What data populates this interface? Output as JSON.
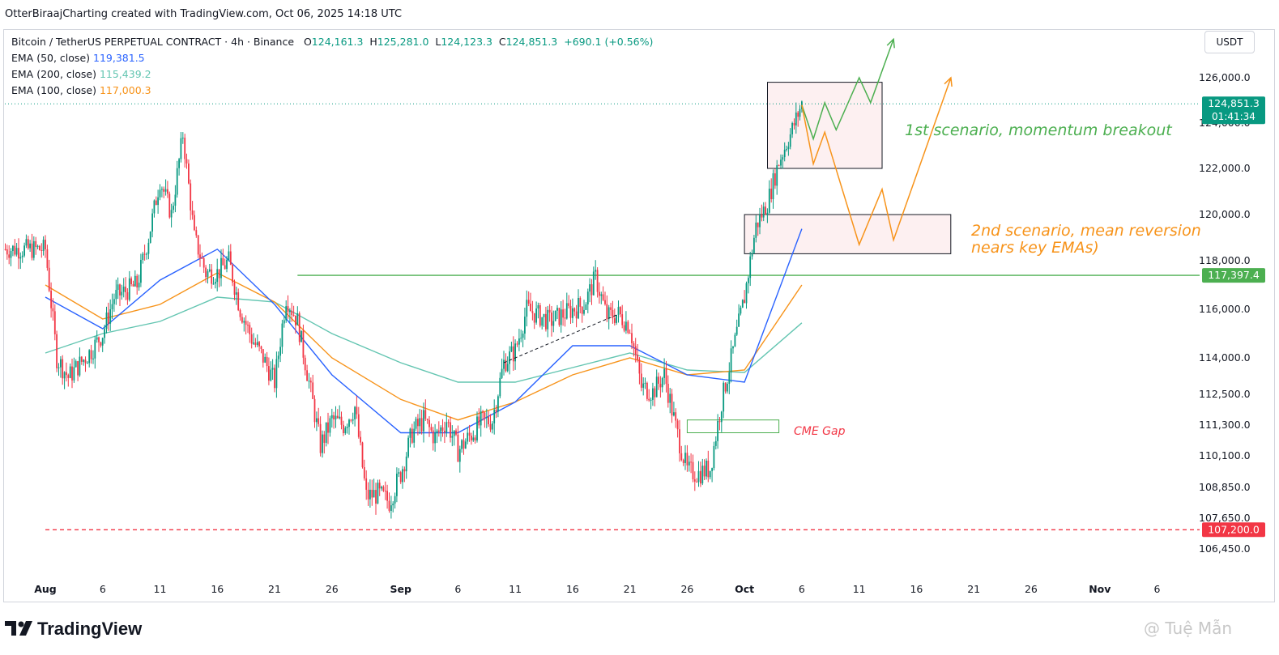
{
  "header": {
    "caption": "OtterBiraajCharting created with TradingView.com, Oct 06, 2025 14:18 UTC"
  },
  "legend": {
    "symbol": "Bitcoin / TetherUS PERPETUAL CONTRACT · 4h · Binance",
    "o_label": "O",
    "o_value": "124,161.3",
    "h_label": "H",
    "h_value": "125,281.0",
    "l_label": "L",
    "l_value": "124,123.3",
    "c_label": "C",
    "c_value": "124,851.3",
    "change": "+690.1 (+0.56%)",
    "ema50_label": "EMA (50, close)",
    "ema50_value": "119,381.5",
    "ema200_label": "EMA (200, close)",
    "ema200_value": "115,439.2",
    "ema100_label": "EMA (100, close)",
    "ema100_value": "117,000.3"
  },
  "currency": "USDT",
  "footer": {
    "brand": "TradingView",
    "watermark": "@ Tuệ Mẫn"
  },
  "colors": {
    "up": "#089981",
    "down": "#f23645",
    "ema50": "#2962ff",
    "ema200": "#63c5b1",
    "ema100": "#f7931a",
    "resistance": "#4caf50",
    "support": "#f23645",
    "scenario1": "#4caf50",
    "scenario2": "#f7931a"
  },
  "chart_data": {
    "type": "candlestick",
    "timeframe": "4h",
    "x_ticks": [
      "Aug",
      "6",
      "11",
      "16",
      "21",
      "26",
      "Sep",
      "6",
      "11",
      "16",
      "21",
      "26",
      "Oct",
      "6",
      "11",
      "16",
      "21",
      "26",
      "Nov",
      "6"
    ],
    "y_ticks": [
      "126,000.0",
      "124,000.0",
      "122,000.0",
      "120,000.0",
      "118,000.0",
      "116,000.0",
      "114,000.0",
      "112,500.0",
      "111,300.0",
      "110,100.0",
      "108,850.0",
      "107,650.0",
      "106,450.0"
    ],
    "price_badges": [
      {
        "label": "124,851.3",
        "sub": "01:41:34",
        "value": 124851.3,
        "color": "#089981"
      },
      {
        "label": "117,397.4",
        "value": 117397.4,
        "color": "#4caf50"
      },
      {
        "label": "107,200.0",
        "value": 107200.0,
        "color": "#f23645"
      }
    ],
    "price_path": [
      {
        "date": "Aug 1",
        "value": 118500
      },
      {
        "date": "Aug 2",
        "value": 114000
      },
      {
        "date": "Aug 3",
        "value": 113200
      },
      {
        "date": "Aug 5",
        "value": 114300
      },
      {
        "date": "Aug 6",
        "value": 115000
      },
      {
        "date": "Aug 7",
        "value": 116500
      },
      {
        "date": "Aug 9",
        "value": 117000
      },
      {
        "date": "Aug 10",
        "value": 119000
      },
      {
        "date": "Aug 11",
        "value": 121500
      },
      {
        "date": "Aug 12",
        "value": 120000
      },
      {
        "date": "Aug 13",
        "value": 123500
      },
      {
        "date": "Aug 14",
        "value": 119000
      },
      {
        "date": "Aug 15",
        "value": 117500
      },
      {
        "date": "Aug 16",
        "value": 117500
      },
      {
        "date": "Aug 17",
        "value": 118000
      },
      {
        "date": "Aug 18",
        "value": 116000
      },
      {
        "date": "Aug 19",
        "value": 114800
      },
      {
        "date": "Aug 20",
        "value": 114000
      },
      {
        "date": "Aug 21",
        "value": 113000
      },
      {
        "date": "Aug 22",
        "value": 116500
      },
      {
        "date": "Aug 23",
        "value": 115500
      },
      {
        "date": "Aug 24",
        "value": 113000
      },
      {
        "date": "Aug 25",
        "value": 110500
      },
      {
        "date": "Aug 26",
        "value": 111500
      },
      {
        "date": "Aug 27",
        "value": 111300
      },
      {
        "date": "Aug 28",
        "value": 112000
      },
      {
        "date": "Aug 29",
        "value": 108500
      },
      {
        "date": "Aug 30",
        "value": 108600
      },
      {
        "date": "Aug 31",
        "value": 108300
      },
      {
        "date": "Sep 1",
        "value": 109400
      },
      {
        "date": "Sep 2",
        "value": 111000
      },
      {
        "date": "Sep 3",
        "value": 111500
      },
      {
        "date": "Sep 4",
        "value": 110800
      },
      {
        "date": "Sep 5",
        "value": 111500
      },
      {
        "date": "Sep 6",
        "value": 110300
      },
      {
        "date": "Sep 8",
        "value": 111400
      },
      {
        "date": "Sep 9",
        "value": 111500
      },
      {
        "date": "Sep 10",
        "value": 113800
      },
      {
        "date": "Sep 11",
        "value": 114300
      },
      {
        "date": "Sep 12",
        "value": 116000
      },
      {
        "date": "Sep 14",
        "value": 115500
      },
      {
        "date": "Sep 16",
        "value": 116000
      },
      {
        "date": "Sep 17",
        "value": 116200
      },
      {
        "date": "Sep 18",
        "value": 117300
      },
      {
        "date": "Sep 19",
        "value": 115700
      },
      {
        "date": "Sep 20",
        "value": 115800
      },
      {
        "date": "Sep 21",
        "value": 115300
      },
      {
        "date": "Sep 22",
        "value": 112800
      },
      {
        "date": "Sep 23",
        "value": 112600
      },
      {
        "date": "Sep 24",
        "value": 113300
      },
      {
        "date": "Sep 25",
        "value": 111200
      },
      {
        "date": "Sep 26",
        "value": 109500
      },
      {
        "date": "Sep 27",
        "value": 109400
      },
      {
        "date": "Sep 28",
        "value": 109600
      },
      {
        "date": "Sep 29",
        "value": 112200
      },
      {
        "date": "Sep 30",
        "value": 114300
      },
      {
        "date": "Oct 1",
        "value": 116500
      },
      {
        "date": "Oct 2",
        "value": 119500
      },
      {
        "date": "Oct 3",
        "value": 120500
      },
      {
        "date": "Oct 4",
        "value": 122300
      },
      {
        "date": "Oct 5",
        "value": 123500
      },
      {
        "date": "Oct 6",
        "value": 124851.3
      }
    ],
    "ema50": [
      {
        "date": "Aug 1",
        "value": 116500
      },
      {
        "date": "Aug 6",
        "value": 115200
      },
      {
        "date": "Aug 11",
        "value": 117200
      },
      {
        "date": "Aug 16",
        "value": 118500
      },
      {
        "date": "Aug 21",
        "value": 116200
      },
      {
        "date": "Aug 26",
        "value": 113300
      },
      {
        "date": "Sep 1",
        "value": 111000
      },
      {
        "date": "Sep 6",
        "value": 111000
      },
      {
        "date": "Sep 11",
        "value": 112200
      },
      {
        "date": "Sep 16",
        "value": 114500
      },
      {
        "date": "Sep 21",
        "value": 114500
      },
      {
        "date": "Sep 26",
        "value": 113300
      },
      {
        "date": "Oct 1",
        "value": 113000
      },
      {
        "date": "Oct 6",
        "value": 119381.5
      }
    ],
    "ema100": [
      {
        "date": "Aug 1",
        "value": 117000
      },
      {
        "date": "Aug 6",
        "value": 115600
      },
      {
        "date": "Aug 11",
        "value": 116200
      },
      {
        "date": "Aug 16",
        "value": 117500
      },
      {
        "date": "Aug 21",
        "value": 116300
      },
      {
        "date": "Aug 26",
        "value": 114000
      },
      {
        "date": "Sep 1",
        "value": 112300
      },
      {
        "date": "Sep 6",
        "value": 111500
      },
      {
        "date": "Sep 11",
        "value": 112200
      },
      {
        "date": "Sep 16",
        "value": 113300
      },
      {
        "date": "Sep 21",
        "value": 114000
      },
      {
        "date": "Sep 26",
        "value": 113300
      },
      {
        "date": "Oct 1",
        "value": 113500
      },
      {
        "date": "Oct 6",
        "value": 117000.3
      }
    ],
    "ema200": [
      {
        "date": "Aug 1",
        "value": 114200
      },
      {
        "date": "Aug 6",
        "value": 115000
      },
      {
        "date": "Aug 11",
        "value": 115500
      },
      {
        "date": "Aug 16",
        "value": 116500
      },
      {
        "date": "Aug 21",
        "value": 116300
      },
      {
        "date": "Aug 26",
        "value": 115000
      },
      {
        "date": "Sep 1",
        "value": 113800
      },
      {
        "date": "Sep 6",
        "value": 113000
      },
      {
        "date": "Sep 11",
        "value": 113000
      },
      {
        "date": "Sep 16",
        "value": 113600
      },
      {
        "date": "Sep 21",
        "value": 114200
      },
      {
        "date": "Sep 26",
        "value": 113500
      },
      {
        "date": "Oct 1",
        "value": 113400
      },
      {
        "date": "Oct 6",
        "value": 115439.2
      }
    ],
    "levels": [
      {
        "name": "resistance",
        "value": 117397.4,
        "from": "Aug 23",
        "style": "solid"
      },
      {
        "name": "support",
        "value": 107200.0,
        "from": "Aug 1",
        "style": "dashed"
      }
    ],
    "zones": [
      {
        "name": "box-1",
        "from": "Oct 3",
        "to": "Oct 13",
        "low": 122000,
        "high": 125800
      },
      {
        "name": "box-2",
        "from": "Oct 1",
        "to": "Oct 19",
        "low": 118300,
        "high": 120000
      },
      {
        "name": "cme-gap",
        "from": "Sep 26",
        "to": "Oct 4",
        "low": 111000,
        "high": 111500
      }
    ],
    "trendline": [
      {
        "date": "Sep 10",
        "value": 113800
      },
      {
        "date": "Sep 20",
        "value": 115800
      }
    ],
    "scenario1_path": [
      {
        "date": "Oct 6",
        "value": 124800
      },
      {
        "date": "Oct 7",
        "value": 123300
      },
      {
        "date": "Oct 8",
        "value": 124900
      },
      {
        "date": "Oct 9",
        "value": 123700
      },
      {
        "date": "Oct 11",
        "value": 126000
      },
      {
        "date": "Oct 12",
        "value": 124900
      },
      {
        "date": "Oct 14",
        "value": 127700
      }
    ],
    "scenario2_path": [
      {
        "date": "Oct 6",
        "value": 124800
      },
      {
        "date": "Oct 7",
        "value": 122200
      },
      {
        "date": "Oct 8",
        "value": 123600
      },
      {
        "date": "Oct 11",
        "value": 118700
      },
      {
        "date": "Oct 13",
        "value": 121100
      },
      {
        "date": "Oct 14",
        "value": 118900
      },
      {
        "date": "Oct 19",
        "value": 126000
      }
    ],
    "annotations": [
      {
        "text": "1st scenario, momentum breakout",
        "color": "#4caf50"
      },
      {
        "text": "2nd scenario, mean reversion",
        "color": "#f7931a"
      },
      {
        "text": "nears key EMAs)",
        "color": "#f7931a"
      },
      {
        "text": "CME Gap",
        "color": "#f23645"
      }
    ]
  }
}
